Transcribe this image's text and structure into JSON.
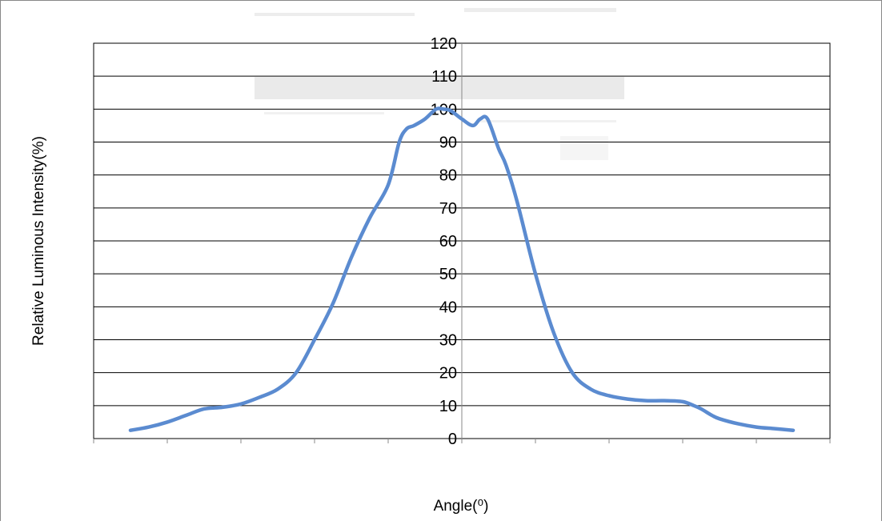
{
  "chart_data": {
    "type": "line",
    "title": "",
    "xlabel": "Angle(⁰)",
    "ylabel": "Relative Luminous Intensity(%)",
    "ylim": [
      0,
      120
    ],
    "yticks": [
      "0",
      "10",
      "20",
      "30",
      "40",
      "50",
      "60",
      "70",
      "80",
      "90",
      "100",
      "110",
      "120"
    ],
    "xlim": [
      -100,
      100
    ],
    "x_tick_labels_visible": false,
    "grid": "horizontal",
    "legend": "none",
    "series": [
      {
        "color": "#5B8BD0",
        "x": [
          -90,
          -85,
          -80,
          -75,
          -70,
          -65,
          -60,
          -55,
          -50,
          -45,
          -40,
          -35,
          -30,
          -25,
          -20,
          -17,
          -15,
          -13,
          -10,
          -7,
          -5,
          -3,
          0,
          3,
          5,
          7,
          10,
          12,
          15,
          20,
          25,
          30,
          35,
          40,
          45,
          50,
          55,
          60,
          63,
          65,
          68,
          70,
          75,
          80,
          85,
          90
        ],
        "y": [
          2.5,
          3.5,
          5,
          7,
          9,
          9.5,
          10.5,
          12.5,
          15,
          20,
          30,
          41,
          55,
          67,
          77,
          90,
          94,
          95,
          97,
          100,
          100,
          99.5,
          97,
          95,
          97,
          97,
          88,
          83,
          72,
          50,
          32,
          20,
          15,
          13,
          12,
          11.5,
          11.5,
          11.2,
          10,
          9,
          7,
          6,
          4.5,
          3.5,
          3,
          2.5
        ]
      }
    ]
  }
}
